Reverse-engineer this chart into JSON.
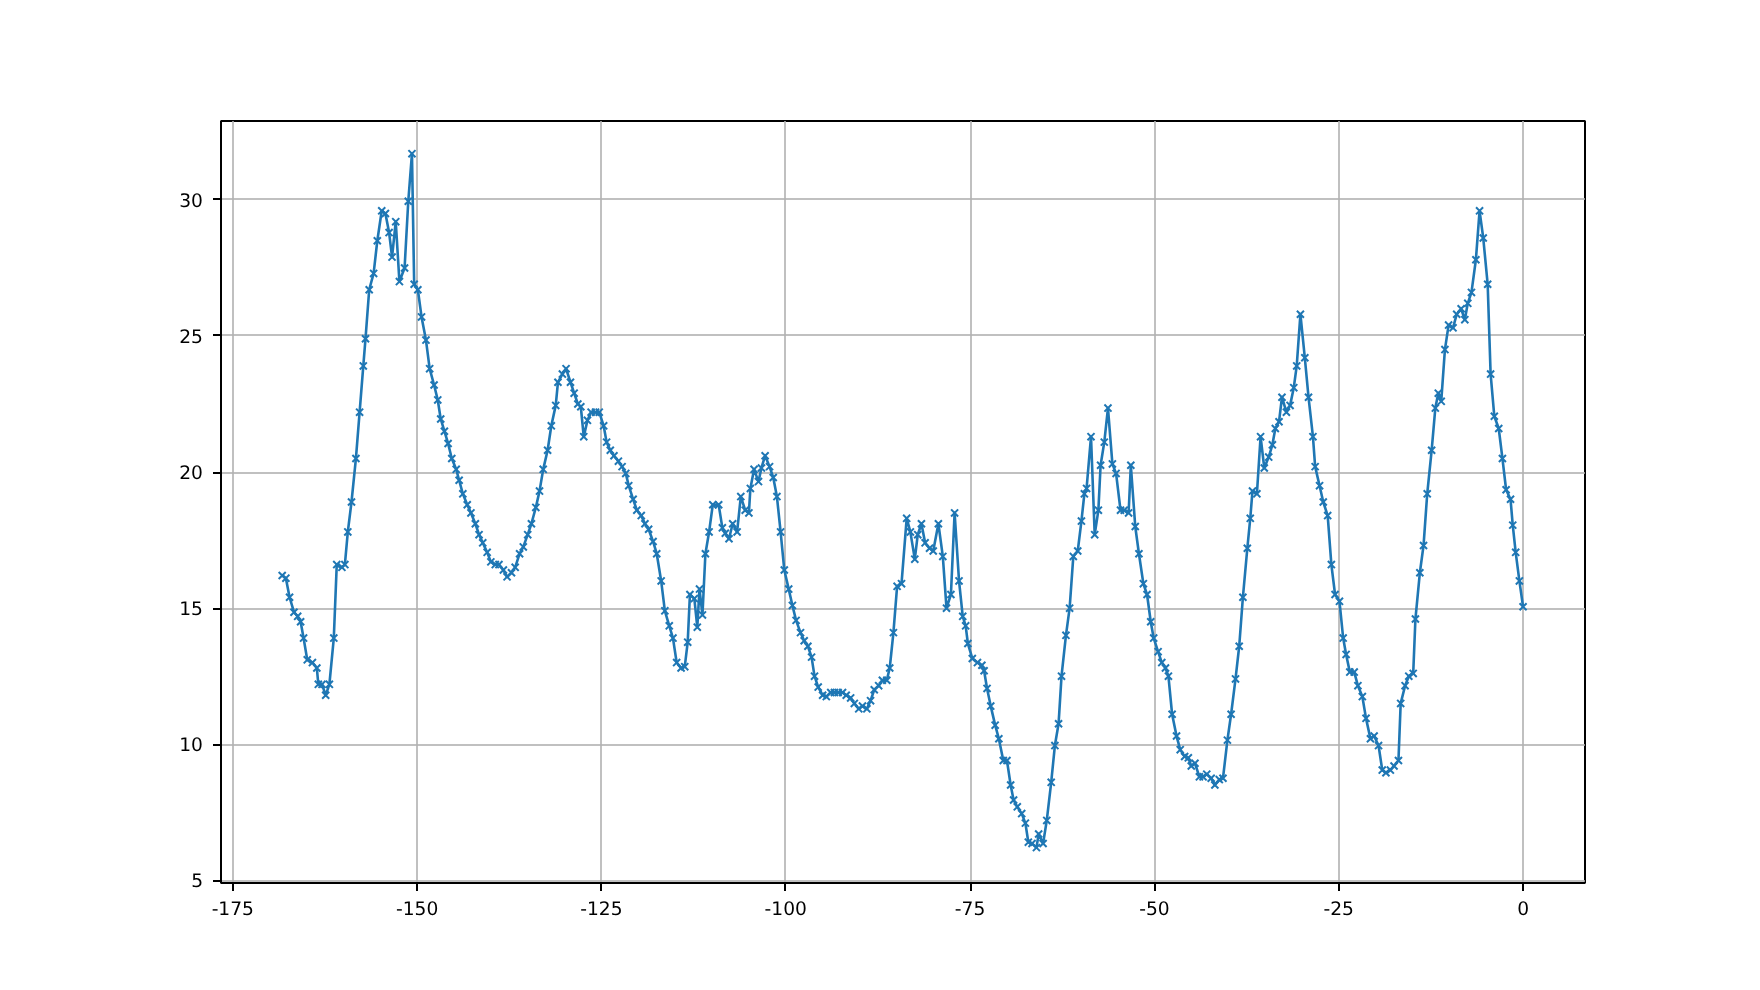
{
  "chart_data": {
    "type": "line",
    "xlim": [
      -176.6,
      8.4
    ],
    "ylim": [
      4.9,
      32.9
    ],
    "xticks": [
      -175,
      -150,
      -125,
      -100,
      -75,
      -50,
      -25,
      0
    ],
    "yticks": [
      5,
      10,
      15,
      20,
      25,
      30
    ],
    "grid": true,
    "marker": "cross",
    "line_style": "solid",
    "x": [
      -168.3,
      -167.8,
      -167.3,
      -166.7,
      -166.2,
      -165.8,
      -165.4,
      -164.9,
      -164.2,
      -163.6,
      -163.4,
      -162.9,
      -162.4,
      -161.9,
      -161.3,
      -160.9,
      -160.2,
      -159.8,
      -159.4,
      -158.9,
      -158.3,
      -157.8,
      -157.3,
      -157.0,
      -156.5,
      -155.9,
      -155.4,
      -154.8,
      -154.3,
      -153.8,
      -153.4,
      -152.9,
      -152.4,
      -151.7,
      -151.2,
      -150.7,
      -150.4,
      -149.9,
      -149.4,
      -148.8,
      -148.3,
      -147.7,
      -147.2,
      -146.8,
      -146.3,
      -145.8,
      -145.3,
      -144.7,
      -144.3,
      -143.8,
      -143.2,
      -142.7,
      -142.1,
      -141.6,
      -141.1,
      -140.5,
      -140.0,
      -139.4,
      -138.9,
      -138.3,
      -137.8,
      -137.2,
      -136.7,
      -136.1,
      -135.6,
      -135.0,
      -134.5,
      -133.9,
      -133.4,
      -132.9,
      -132.3,
      -131.8,
      -131.2,
      -130.9,
      -130.3,
      -129.8,
      -129.2,
      -128.7,
      -128.2,
      -127.8,
      -127.4,
      -126.9,
      -126.4,
      -125.8,
      -125.3,
      -124.7,
      -124.3,
      -123.8,
      -123.3,
      -122.7,
      -122.2,
      -121.7,
      -121.3,
      -120.7,
      -120.2,
      -119.6,
      -119.1,
      -118.6,
      -118.0,
      -117.5,
      -116.9,
      -116.4,
      -115.8,
      -115.3,
      -114.8,
      -114.2,
      -113.7,
      -113.3,
      -113.0,
      -112.4,
      -112.0,
      -111.7,
      -111.3,
      -110.9,
      -110.4,
      -109.9,
      -109.1,
      -108.6,
      -108.2,
      -107.7,
      -107.2,
      -106.6,
      -106.1,
      -105.5,
      -105.0,
      -104.8,
      -104.3,
      -103.7,
      -103.3,
      -102.8,
      -102.2,
      -101.7,
      -101.2,
      -100.7,
      -100.2,
      -99.6,
      -99.1,
      -98.6,
      -98.0,
      -97.5,
      -97.0,
      -96.5,
      -96.1,
      -95.6,
      -95.0,
      -94.5,
      -93.9,
      -93.4,
      -92.9,
      -92.3,
      -91.8,
      -91.2,
      -90.7,
      -90.1,
      -89.6,
      -89.0,
      -88.5,
      -88.0,
      -87.4,
      -86.9,
      -86.3,
      -85.9,
      -85.4,
      -84.9,
      -84.3,
      -83.6,
      -83.1,
      -82.5,
      -82.1,
      -81.6,
      -81.1,
      -80.5,
      -80.0,
      -79.3,
      -78.7,
      -78.2,
      -77.6,
      -77.1,
      -76.5,
      -76.0,
      -75.6,
      -75.3,
      -74.7,
      -74.0,
      -73.4,
      -73.1,
      -72.7,
      -72.2,
      -71.6,
      -71.1,
      -70.5,
      -70.0,
      -69.5,
      -69.1,
      -68.6,
      -68.0,
      -67.5,
      -67.1,
      -66.6,
      -66.0,
      -65.7,
      -65.1,
      -64.6,
      -64.0,
      -63.5,
      -63.0,
      -62.6,
      -62.0,
      -61.5,
      -61.0,
      -60.4,
      -59.9,
      -59.5,
      -59.2,
      -58.6,
      -58.1,
      -57.6,
      -57.3,
      -56.8,
      -56.3,
      -55.7,
      -55.2,
      -54.6,
      -54.1,
      -53.5,
      -53.2,
      -52.6,
      -52.1,
      -51.5,
      -51.0,
      -50.5,
      -50.1,
      -49.5,
      -49.0,
      -48.5,
      -48.1,
      -47.6,
      -47.0,
      -46.5,
      -45.9,
      -45.4,
      -45.0,
      -44.5,
      -43.9,
      -43.4,
      -42.9,
      -42.3,
      -41.8,
      -41.2,
      -40.7,
      -40.1,
      -39.6,
      -39.0,
      -38.5,
      -38.0,
      -37.4,
      -37.0,
      -36.7,
      -36.1,
      -35.6,
      -35.1,
      -34.5,
      -34.0,
      -33.6,
      -33.1,
      -32.7,
      -32.1,
      -31.6,
      -31.1,
      -30.7,
      -30.2,
      -29.6,
      -29.1,
      -28.5,
      -28.2,
      -27.6,
      -27.1,
      -26.5,
      -26.0,
      -25.5,
      -24.9,
      -24.4,
      -24.0,
      -23.5,
      -22.9,
      -22.4,
      -21.8,
      -21.3,
      -20.7,
      -20.2,
      -19.6,
      -19.1,
      -18.6,
      -18.0,
      -17.5,
      -16.9,
      -16.6,
      -16.0,
      -15.5,
      -14.9,
      -14.6,
      -14.0,
      -13.5,
      -13.0,
      -12.4,
      -11.9,
      -11.5,
      -11.1,
      -10.6,
      -10.1,
      -9.5,
      -9.0,
      -8.4,
      -7.9,
      -7.5,
      -7.0,
      -6.4,
      -5.9,
      -5.4,
      -4.8,
      -4.4,
      -3.9,
      -3.3,
      -2.8,
      -2.3,
      -1.7,
      -1.4,
      -1.0,
      -0.5,
      0
    ],
    "series": [
      {
        "color": "#1f77b4",
        "values": [
          16.2,
          16.1,
          15.4,
          14.85,
          14.7,
          14.5,
          13.9,
          13.1,
          13.0,
          12.8,
          12.2,
          12.2,
          11.8,
          12.2,
          13.9,
          16.6,
          16.5,
          16.6,
          17.8,
          18.9,
          20.5,
          22.2,
          23.9,
          24.9,
          26.7,
          27.3,
          28.5,
          29.6,
          29.5,
          28.8,
          27.9,
          29.2,
          27.0,
          27.5,
          29.95,
          31.7,
          26.9,
          26.7,
          25.7,
          24.85,
          23.8,
          23.2,
          22.65,
          21.95,
          21.5,
          21.05,
          20.5,
          20.1,
          19.7,
          19.2,
          18.8,
          18.5,
          18.1,
          17.7,
          17.4,
          17.05,
          16.7,
          16.6,
          16.6,
          16.4,
          16.15,
          16.3,
          16.5,
          17.0,
          17.25,
          17.7,
          18.1,
          18.7,
          19.3,
          20.1,
          20.8,
          21.7,
          22.45,
          23.3,
          23.6,
          23.8,
          23.3,
          22.9,
          22.5,
          22.4,
          21.3,
          21.9,
          22.2,
          22.2,
          22.2,
          21.7,
          21.1,
          20.8,
          20.6,
          20.4,
          20.2,
          19.95,
          19.5,
          19.0,
          18.6,
          18.4,
          18.1,
          17.9,
          17.45,
          17.0,
          16.0,
          14.9,
          14.35,
          13.9,
          13.0,
          12.8,
          12.85,
          13.75,
          15.5,
          15.35,
          14.3,
          15.7,
          14.75,
          17.0,
          17.8,
          18.8,
          18.8,
          17.95,
          17.75,
          17.55,
          18.1,
          17.8,
          19.1,
          18.6,
          18.5,
          19.4,
          20.1,
          19.65,
          20.15,
          20.6,
          20.2,
          19.8,
          19.1,
          17.8,
          16.4,
          15.7,
          15.1,
          14.55,
          14.1,
          13.8,
          13.6,
          13.2,
          12.5,
          12.1,
          11.8,
          11.75,
          11.9,
          11.9,
          11.9,
          11.9,
          11.8,
          11.7,
          11.5,
          11.3,
          11.4,
          11.3,
          11.6,
          12.0,
          12.15,
          12.35,
          12.35,
          12.8,
          14.1,
          15.8,
          15.9,
          18.3,
          17.8,
          16.8,
          17.7,
          18.1,
          17.4,
          17.2,
          17.1,
          18.1,
          16.9,
          15.0,
          15.5,
          18.5,
          16.0,
          14.7,
          14.35,
          13.7,
          13.15,
          13.0,
          12.9,
          12.7,
          12.05,
          11.4,
          10.7,
          10.2,
          9.4,
          9.4,
          8.5,
          7.95,
          7.7,
          7.45,
          7.1,
          6.4,
          6.35,
          6.2,
          6.7,
          6.35,
          7.2,
          8.6,
          9.95,
          10.75,
          12.5,
          14.0,
          15.0,
          16.9,
          17.1,
          18.2,
          19.2,
          19.4,
          21.3,
          17.7,
          18.6,
          20.25,
          21.1,
          22.35,
          20.3,
          19.95,
          18.6,
          18.6,
          18.5,
          20.25,
          18.0,
          17.0,
          15.9,
          15.5,
          14.5,
          13.9,
          13.4,
          13.0,
          12.8,
          12.5,
          11.1,
          10.3,
          9.8,
          9.55,
          9.5,
          9.2,
          9.3,
          8.8,
          8.8,
          8.9,
          8.75,
          8.5,
          8.7,
          8.75,
          10.15,
          11.1,
          12.4,
          13.6,
          15.4,
          17.2,
          18.3,
          19.3,
          19.2,
          21.3,
          20.15,
          20.55,
          21.0,
          21.6,
          21.85,
          22.75,
          22.2,
          22.45,
          23.1,
          23.9,
          25.8,
          24.2,
          22.75,
          21.3,
          20.2,
          19.5,
          18.9,
          18.4,
          16.6,
          15.5,
          15.25,
          13.9,
          13.3,
          12.65,
          12.65,
          12.15,
          11.75,
          10.95,
          10.2,
          10.3,
          9.95,
          9.05,
          8.95,
          9.05,
          9.2,
          9.4,
          11.5,
          12.15,
          12.5,
          12.6,
          14.6,
          16.3,
          17.3,
          19.2,
          20.8,
          22.35,
          22.9,
          22.6,
          24.5,
          25.4,
          25.3,
          25.8,
          26.0,
          25.6,
          26.2,
          26.6,
          27.8,
          29.6,
          28.6,
          26.9,
          23.6,
          22.05,
          21.6,
          20.5,
          19.35,
          19.0,
          18.05,
          17.05,
          16.0,
          15.05
        ]
      }
    ]
  }
}
